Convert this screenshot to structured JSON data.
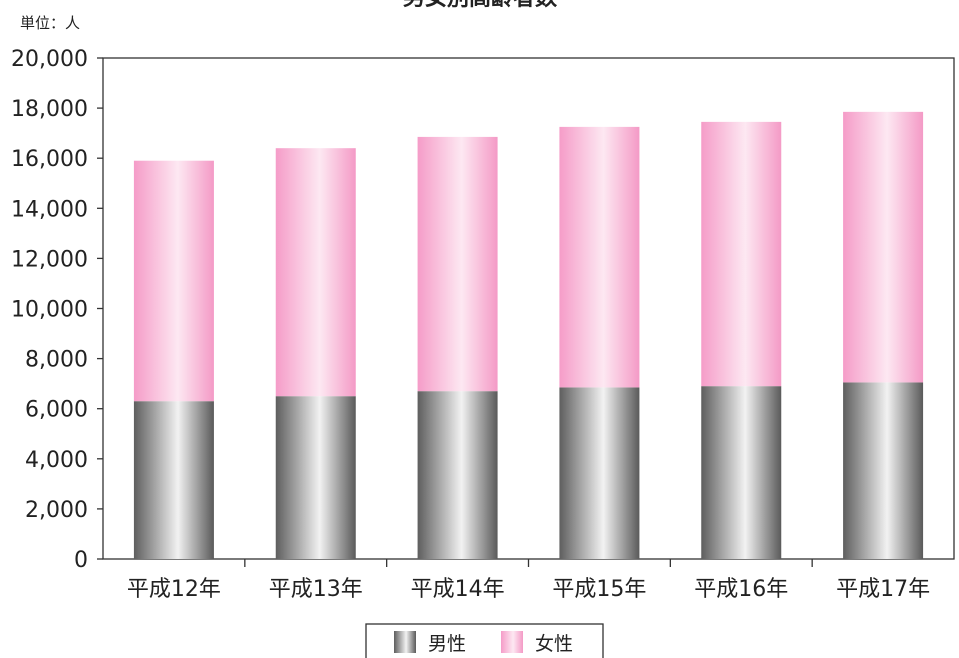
{
  "chart_data": {
    "type": "bar",
    "stacked": true,
    "title": "男女別高齢者数",
    "unit_label": "単位：人",
    "categories": [
      "平成12年",
      "平成13年",
      "平成14年",
      "平成15年",
      "平成16年",
      "平成17年"
    ],
    "series": [
      {
        "name": "男性",
        "values": [
          6300,
          6500,
          6700,
          6850,
          6900,
          7050
        ],
        "color": "#8a8a8a"
      },
      {
        "name": "女性",
        "values": [
          9600,
          9900,
          10150,
          10400,
          10550,
          10800
        ],
        "color": "#f7b5d3"
      }
    ],
    "ylim": [
      0,
      20000
    ],
    "yticks": [
      "0",
      "2,000",
      "4,000",
      "6,000",
      "8,000",
      "10,000",
      "12,000",
      "14,000",
      "16,000",
      "18,000",
      "20,000"
    ],
    "grid": false,
    "legend_position": "bottom-center"
  }
}
